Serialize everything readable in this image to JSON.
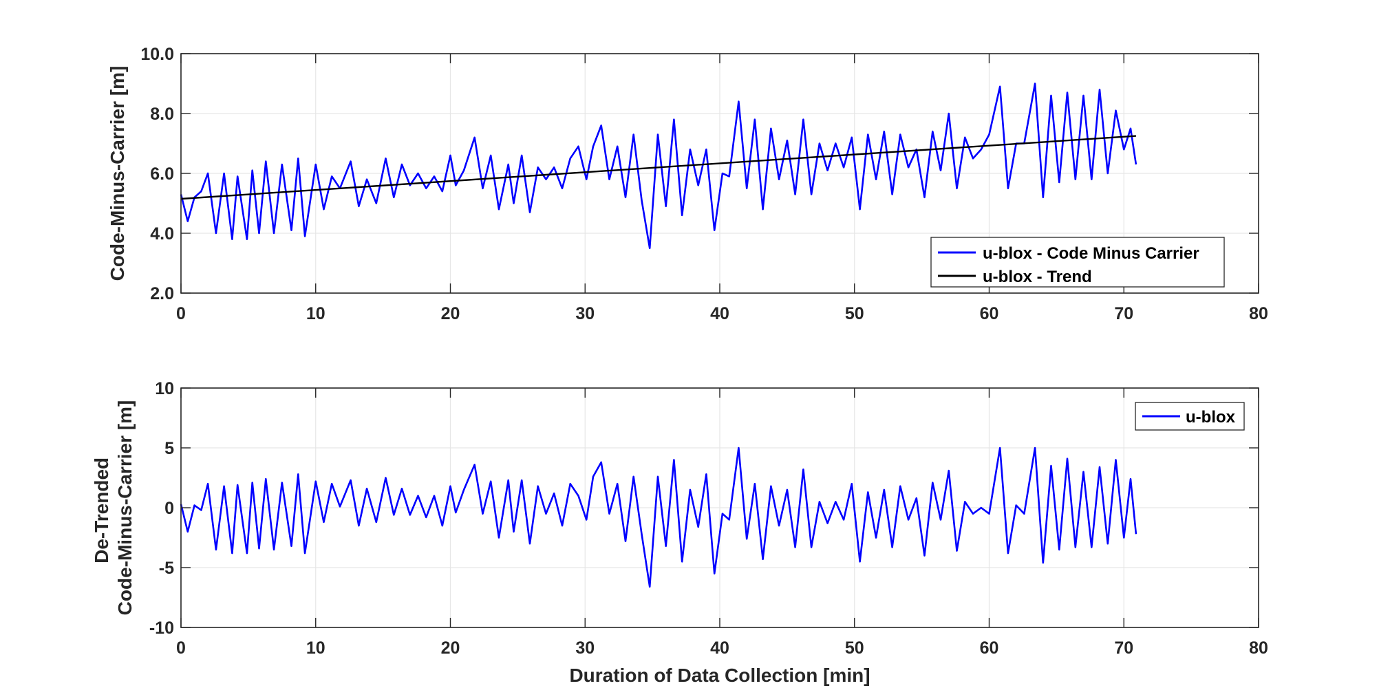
{
  "chart_data": [
    {
      "type": "line",
      "ylabel": "Code-Minus-Carrier [m]",
      "xlabel": "",
      "xlim": [
        0,
        80
      ],
      "ylim": [
        2,
        10
      ],
      "xticks": [
        "0",
        "10",
        "20",
        "30",
        "40",
        "50",
        "60",
        "70",
        "80"
      ],
      "yticks": [
        "2.0",
        "4.0",
        "6.0",
        "8.0",
        "10.0"
      ],
      "grid": true,
      "legend_position": "bottom-right",
      "series": [
        {
          "name": "u-blox - Code Minus Carrier",
          "color": "#0000ff",
          "x": [
            0,
            0.5,
            1,
            1.5,
            2,
            2.6,
            3.2,
            3.8,
            4.2,
            4.9,
            5.3,
            5.8,
            6.3,
            6.9,
            7.5,
            8.2,
            8.7,
            9.2,
            10,
            10.6,
            11.2,
            11.8,
            12.6,
            13.2,
            13.8,
            14.5,
            15.2,
            15.8,
            16.4,
            17,
            17.6,
            18.2,
            18.8,
            19.4,
            20,
            20.4,
            21,
            21.8,
            22.4,
            23,
            23.6,
            24.3,
            24.7,
            25.3,
            25.9,
            26.5,
            27.1,
            27.7,
            28.3,
            28.9,
            29.5,
            30.1,
            30.6,
            31.2,
            31.8,
            32.4,
            33,
            33.6,
            34.2,
            34.8,
            35.4,
            36,
            36.6,
            37.2,
            37.8,
            38.4,
            39,
            39.6,
            40.2,
            40.7,
            41.4,
            42,
            42.6,
            43.2,
            43.8,
            44.4,
            45,
            45.6,
            46.2,
            46.8,
            47.4,
            48,
            48.6,
            49.2,
            49.8,
            50.4,
            51,
            51.6,
            52.2,
            52.8,
            53.4,
            54,
            54.6,
            55.2,
            55.8,
            56.4,
            57,
            57.6,
            58.2,
            58.8,
            59.4,
            60,
            60.8,
            61.4,
            62,
            62.6,
            63.4,
            64,
            64.6,
            65.2,
            65.8,
            66.4,
            67,
            67.6,
            68.2,
            68.8,
            69.4,
            70,
            70.5,
            70.9
          ],
          "y": [
            5.3,
            4.4,
            5.2,
            5.4,
            6.0,
            4.0,
            6.0,
            3.8,
            5.9,
            3.8,
            6.1,
            4.0,
            6.4,
            4.0,
            6.3,
            4.1,
            6.5,
            3.9,
            6.3,
            4.8,
            5.9,
            5.5,
            6.4,
            4.9,
            5.8,
            5.0,
            6.5,
            5.2,
            6.3,
            5.6,
            6.0,
            5.5,
            5.9,
            5.4,
            6.6,
            5.6,
            6.1,
            7.2,
            5.5,
            6.6,
            4.8,
            6.3,
            5.0,
            6.6,
            4.7,
            6.2,
            5.8,
            6.2,
            5.5,
            6.5,
            6.9,
            5.8,
            6.9,
            7.6,
            5.8,
            6.9,
            5.2,
            7.3,
            5.1,
            3.5,
            7.3,
            4.9,
            7.8,
            4.6,
            6.8,
            5.6,
            6.8,
            4.1,
            6.0,
            5.9,
            8.4,
            5.5,
            7.8,
            4.8,
            7.5,
            5.8,
            7.1,
            5.3,
            7.8,
            5.3,
            7.0,
            6.1,
            7.0,
            6.2,
            7.2,
            4.8,
            7.3,
            5.8,
            7.4,
            5.3,
            7.3,
            6.2,
            6.8,
            5.2,
            7.4,
            6.1,
            8.0,
            5.5,
            7.2,
            6.5,
            6.8,
            7.3,
            8.9,
            5.5,
            7.0,
            7.0,
            9.0,
            5.2,
            8.6,
            5.7,
            8.7,
            5.8,
            8.6,
            5.8,
            8.8,
            6.0,
            8.1,
            6.8,
            7.5,
            6.3
          ]
        },
        {
          "name": "u-blox - Trend",
          "color": "#000000",
          "x": [
            0,
            70.9
          ],
          "y": [
            5.15,
            7.25
          ]
        }
      ]
    },
    {
      "type": "line",
      "ylabel": "De-Trended\nCode-Minus-Carrier [m]",
      "xlabel": "Duration of Data Collection [min]",
      "xlim": [
        0,
        80
      ],
      "ylim": [
        -10,
        10
      ],
      "xticks": [
        "0",
        "10",
        "20",
        "30",
        "40",
        "50",
        "60",
        "70",
        "80"
      ],
      "yticks": [
        "-10",
        "-5",
        "0",
        "5",
        "10"
      ],
      "grid": true,
      "legend_position": "top-right",
      "series": [
        {
          "name": "u-blox",
          "color": "#0000ff",
          "x": [
            0,
            0.5,
            1,
            1.5,
            2,
            2.6,
            3.2,
            3.8,
            4.2,
            4.9,
            5.3,
            5.8,
            6.3,
            6.9,
            7.5,
            8.2,
            8.7,
            9.2,
            10,
            10.6,
            11.2,
            11.8,
            12.6,
            13.2,
            13.8,
            14.5,
            15.2,
            15.8,
            16.4,
            17,
            17.6,
            18.2,
            18.8,
            19.4,
            20,
            20.4,
            21,
            21.8,
            22.4,
            23,
            23.6,
            24.3,
            24.7,
            25.3,
            25.9,
            26.5,
            27.1,
            27.7,
            28.3,
            28.9,
            29.5,
            30.1,
            30.6,
            31.2,
            31.8,
            32.4,
            33,
            33.6,
            34.2,
            34.8,
            35.4,
            36,
            36.6,
            37.2,
            37.8,
            38.4,
            39,
            39.6,
            40.2,
            40.7,
            41.4,
            42,
            42.6,
            43.2,
            43.8,
            44.4,
            45,
            45.6,
            46.2,
            46.8,
            47.4,
            48,
            48.6,
            49.2,
            49.8,
            50.4,
            51,
            51.6,
            52.2,
            52.8,
            53.4,
            54,
            54.6,
            55.2,
            55.8,
            56.4,
            57,
            57.6,
            58.2,
            58.8,
            59.4,
            60,
            60.8,
            61.4,
            62,
            62.6,
            63.4,
            64,
            64.6,
            65.2,
            65.8,
            66.4,
            67,
            67.6,
            68.2,
            68.8,
            69.4,
            70,
            70.5,
            70.9
          ],
          "y": [
            0.3,
            -2.0,
            0.2,
            -0.2,
            2.0,
            -3.5,
            1.8,
            -3.8,
            1.9,
            -3.8,
            2.1,
            -3.4,
            2.4,
            -3.5,
            2.1,
            -3.2,
            2.8,
            -3.8,
            2.2,
            -1.2,
            2.0,
            0.1,
            2.3,
            -1.5,
            1.6,
            -1.2,
            2.5,
            -0.6,
            1.6,
            -0.6,
            1.0,
            -0.8,
            1.0,
            -1.5,
            1.8,
            -0.4,
            1.5,
            3.6,
            -0.5,
            2.2,
            -2.5,
            2.3,
            -2.0,
            2.3,
            -3.0,
            1.8,
            -0.5,
            1.2,
            -1.5,
            2.0,
            1.0,
            -1.0,
            2.6,
            3.8,
            -0.5,
            2.0,
            -2.8,
            2.6,
            -2.2,
            -6.6,
            2.6,
            -3.2,
            4.0,
            -4.5,
            1.5,
            -1.6,
            2.8,
            -5.5,
            -0.5,
            -1.0,
            5.0,
            -2.6,
            2.0,
            -4.3,
            1.8,
            -1.5,
            1.5,
            -3.3,
            3.2,
            -3.3,
            0.5,
            -1.3,
            0.5,
            -1.0,
            2.0,
            -4.5,
            1.3,
            -2.5,
            1.5,
            -3.3,
            1.8,
            -1.0,
            0.8,
            -4.0,
            2.1,
            -1.0,
            3.1,
            -3.6,
            0.5,
            -0.5,
            0,
            -0.5,
            5.0,
            -3.8,
            0.2,
            -0.5,
            5.0,
            -4.6,
            3.5,
            -3.5,
            4.1,
            -3.3,
            3.0,
            -3.3,
            3.4,
            -3.0,
            4.0,
            -2.5,
            2.4,
            -2.2
          ]
        }
      ]
    }
  ]
}
